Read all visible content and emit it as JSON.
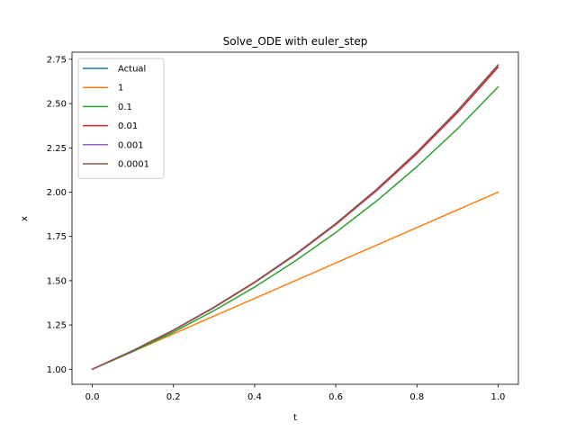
{
  "chart_data": {
    "type": "line",
    "title": "Solve_ODE with euler_step",
    "xlabel": "t",
    "ylabel": "x",
    "xlim": [
      -0.05,
      1.05
    ],
    "ylim": [
      0.915,
      2.79
    ],
    "xticks": [
      0.0,
      0.2,
      0.4,
      0.6,
      0.8,
      1.0
    ],
    "xtick_labels": [
      "0.0",
      "0.2",
      "0.4",
      "0.6",
      "0.8",
      "1.0"
    ],
    "yticks": [
      1.0,
      1.25,
      1.5,
      1.75,
      2.0,
      2.25,
      2.5,
      2.75
    ],
    "ytick_labels": [
      "1.00",
      "1.25",
      "1.50",
      "1.75",
      "2.00",
      "2.25",
      "2.50",
      "2.75"
    ],
    "grid": false,
    "legend_position": "top-left",
    "series": [
      {
        "name": "Actual",
        "color": "#1f77b4",
        "x": [
          0,
          0.1,
          0.2,
          0.3,
          0.4,
          0.5,
          0.6,
          0.7,
          0.8,
          0.9,
          1.0
        ],
        "y": [
          1.0,
          1.105,
          1.221,
          1.35,
          1.492,
          1.649,
          1.822,
          2.014,
          2.226,
          2.46,
          2.718
        ]
      },
      {
        "name": "1",
        "color": "#ff7f0e",
        "x": [
          0,
          1.0
        ],
        "y": [
          1.0,
          2.0
        ]
      },
      {
        "name": "0.1",
        "color": "#2ca02c",
        "x": [
          0,
          0.1,
          0.2,
          0.3,
          0.4,
          0.5,
          0.6,
          0.7,
          0.8,
          0.9,
          1.0
        ],
        "y": [
          1.0,
          1.1,
          1.21,
          1.331,
          1.464,
          1.611,
          1.772,
          1.949,
          2.144,
          2.358,
          2.594
        ]
      },
      {
        "name": "0.01",
        "color": "#d62728",
        "x": [
          0,
          0.1,
          0.2,
          0.3,
          0.4,
          0.5,
          0.6,
          0.7,
          0.8,
          0.9,
          1.0
        ],
        "y": [
          1.0,
          1.105,
          1.22,
          1.348,
          1.489,
          1.645,
          1.817,
          2.007,
          2.217,
          2.449,
          2.705
        ]
      },
      {
        "name": "0.001",
        "color": "#9467bd",
        "x": [
          0,
          0.1,
          0.2,
          0.3,
          0.4,
          0.5,
          0.6,
          0.7,
          0.8,
          0.9,
          1.0
        ],
        "y": [
          1.0,
          1.105,
          1.221,
          1.35,
          1.492,
          1.648,
          1.821,
          2.013,
          2.225,
          2.458,
          2.717
        ]
      },
      {
        "name": "0.0001",
        "color": "#8c564b",
        "x": [
          0,
          0.1,
          0.2,
          0.3,
          0.4,
          0.5,
          0.6,
          0.7,
          0.8,
          0.9,
          1.0
        ],
        "y": [
          1.0,
          1.105,
          1.221,
          1.35,
          1.492,
          1.649,
          1.822,
          2.014,
          2.226,
          2.46,
          2.718
        ]
      }
    ]
  }
}
